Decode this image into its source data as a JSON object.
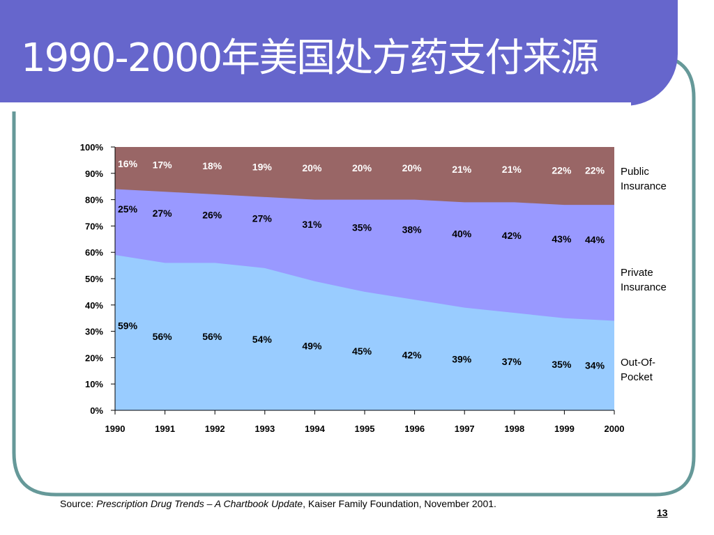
{
  "slide": {
    "title": "1990-2000年美国处方药支付来源",
    "source_prefix": "Source: ",
    "source_title": "Prescription Drug Trends – A Chartbook Update",
    "source_suffix": ", Kaiser Family Foundation, November 2001.",
    "page_number": "13"
  },
  "colors": {
    "title_band": "#6666cc",
    "frame_line": "#669999",
    "out_of_pocket": "#99ccff",
    "private_insurance": "#9999ff",
    "public_insurance": "#996666"
  },
  "chart_data": {
    "type": "area",
    "stacked": true,
    "percent_stacked": true,
    "x": [
      "1990",
      "1991",
      "1992",
      "1993",
      "1994",
      "1995",
      "1996",
      "1997",
      "1998",
      "1999",
      "2000"
    ],
    "ylim": [
      0,
      100
    ],
    "yticks": [
      "0%",
      "10%",
      "20%",
      "30%",
      "40%",
      "50%",
      "60%",
      "70%",
      "80%",
      "90%",
      "100%"
    ],
    "grid": false,
    "legend_placement": "right",
    "series": [
      {
        "name": "Out-Of-Pocket",
        "values": [
          59,
          56,
          56,
          54,
          49,
          45,
          42,
          39,
          37,
          35,
          34
        ],
        "labels": [
          "59%",
          "56%",
          "56%",
          "54%",
          "49%",
          "45%",
          "42%",
          "39%",
          "37%",
          "35%",
          "34%"
        ]
      },
      {
        "name": "Private Insurance",
        "values": [
          25,
          27,
          26,
          27,
          31,
          35,
          38,
          40,
          42,
          43,
          44
        ],
        "labels": [
          "25%",
          "27%",
          "26%",
          "27%",
          "31%",
          "35%",
          "38%",
          "40%",
          "42%",
          "43%",
          "44%"
        ]
      },
      {
        "name": "Public Insurance",
        "values": [
          16,
          17,
          18,
          19,
          20,
          20,
          20,
          21,
          21,
          22,
          22
        ],
        "labels": [
          "16%",
          "17%",
          "18%",
          "19%",
          "20%",
          "20%",
          "20%",
          "21%",
          "21%",
          "22%",
          "22%"
        ]
      }
    ],
    "legend": [
      {
        "line1": "Public",
        "line2": "Insurance"
      },
      {
        "line1": "Private",
        "line2": "Insurance"
      },
      {
        "line1": "Out-Of-",
        "line2": "Pocket"
      }
    ]
  }
}
